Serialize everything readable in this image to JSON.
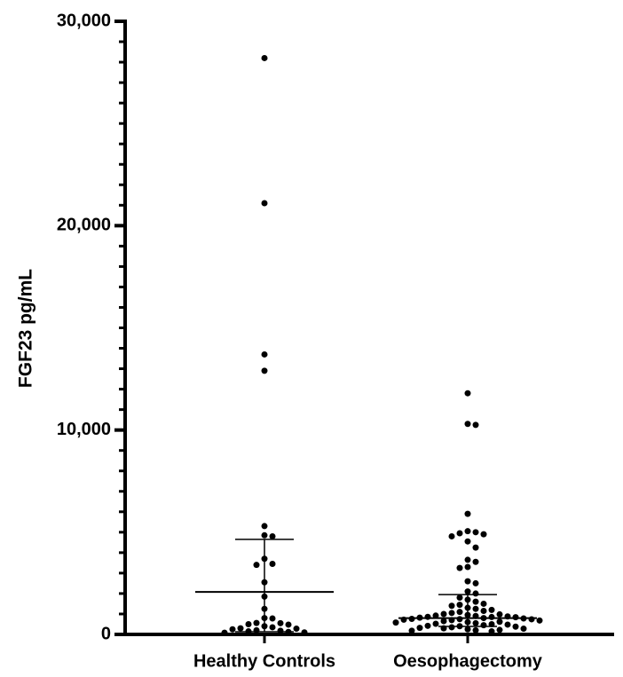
{
  "chart_data": {
    "type": "scatter",
    "y_label": "FGF23 pg/mL",
    "categories": [
      "Healthy Controls",
      "Oesophagectomy"
    ],
    "series": [
      {
        "name": "Healthy Controls",
        "color": "#000000",
        "values": [
          28200,
          21100,
          13700,
          12900,
          5300,
          4850,
          4800,
          3700,
          3450,
          3400,
          2550,
          1850,
          1250,
          800,
          780,
          560,
          550,
          500,
          480,
          400,
          350,
          300,
          280,
          250,
          200,
          180,
          150,
          120,
          100,
          80
        ],
        "median": 2080,
        "lower": 130,
        "upper": 4650
      },
      {
        "name": "Oesophagectomy",
        "color": "#000000",
        "values": [
          11800,
          10300,
          10250,
          5900,
          5050,
          5000,
          4950,
          4900,
          4800,
          4550,
          4250,
          3650,
          3550,
          3300,
          3250,
          2600,
          2500,
          2100,
          2000,
          1800,
          1700,
          1600,
          1500,
          1450,
          1400,
          1300,
          1250,
          1200,
          1150,
          1100,
          1050,
          1000,
          980,
          950,
          920,
          900,
          880,
          860,
          850,
          840,
          820,
          800,
          780,
          760,
          750,
          740,
          720,
          700,
          680,
          650,
          620,
          600,
          580,
          550,
          520,
          500,
          480,
          450,
          420,
          400,
          380,
          350,
          320,
          300,
          280,
          250,
          220,
          200,
          180,
          150
        ],
        "median": 800,
        "lower": 390,
        "upper": 1950
      }
    ],
    "ylim": [
      0,
      30000
    ],
    "yticks": [
      {
        "value": 0,
        "label": "0"
      },
      {
        "value": 10000,
        "label": "10,000"
      },
      {
        "value": 20000,
        "label": "20,000"
      },
      {
        "value": 30000,
        "label": "30,000"
      }
    ],
    "yminorticks": [
      1000,
      2000,
      3000,
      4000,
      5000,
      6000,
      7000,
      8000,
      9000,
      11000,
      12000,
      13000,
      14000,
      15000,
      16000,
      17000,
      18000,
      19000,
      21000,
      22000,
      23000,
      24000,
      25000,
      26000,
      27000,
      28000,
      29000
    ]
  }
}
